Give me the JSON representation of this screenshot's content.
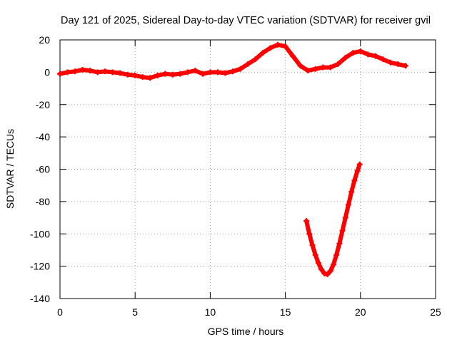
{
  "chart_data": {
    "type": "scatter",
    "title": "Day 121 of 2025, Sidereal Day-to-day VTEC variation (SDTVAR) for receiver gvil",
    "xlabel": "GPS time / hours",
    "ylabel": "SDTVAR / TECUs",
    "xlim": [
      0,
      25
    ],
    "ylim": [
      -140,
      20
    ],
    "xticks": [
      0,
      5,
      10,
      15,
      20,
      25
    ],
    "yticks": [
      20,
      0,
      -20,
      -40,
      -60,
      -80,
      -100,
      -120,
      -140
    ],
    "grid": true,
    "marker": "+",
    "series_color": "#ff0000",
    "series": [
      {
        "x": [
          0.0,
          0.5,
          1.0,
          1.5,
          2.0,
          2.5,
          3.0,
          3.5,
          4.0,
          4.5,
          5.0,
          5.5,
          6.0,
          6.5,
          7.0,
          7.5,
          8.0,
          8.5,
          9.0,
          9.5,
          10.0,
          10.5,
          11.0,
          11.5,
          12.0,
          12.5,
          13.0,
          13.5,
          14.0,
          14.5,
          15.0,
          15.5,
          16.0,
          16.5,
          17.0,
          17.5,
          18.0,
          18.5,
          19.0,
          19.5,
          20.0,
          20.5,
          21.0,
          21.5,
          22.0,
          22.5,
          23.0
        ],
        "y": [
          -1,
          0,
          0.5,
          1.5,
          1,
          0,
          0.5,
          0,
          -0.5,
          -1.5,
          -2,
          -3,
          -3.5,
          -2,
          -1,
          -1.5,
          -1,
          0,
          1,
          -1,
          0,
          0,
          -0.5,
          0.5,
          2,
          5,
          8,
          12,
          15,
          17,
          16,
          10,
          4,
          1,
          2,
          3,
          3,
          5,
          9,
          12,
          13,
          11,
          10,
          8,
          6,
          5,
          4
        ]
      },
      {
        "x": [
          16.4,
          16.6,
          16.8,
          17.0,
          17.2,
          17.4,
          17.6,
          17.8,
          18.0,
          18.2,
          18.4,
          18.6,
          18.8,
          19.0,
          19.2,
          19.4,
          19.6,
          19.8,
          19.95
        ],
        "y": [
          -92,
          -100,
          -107,
          -113,
          -118,
          -122,
          -124.5,
          -125,
          -123,
          -119,
          -113,
          -106,
          -98,
          -90,
          -82,
          -74,
          -67,
          -61,
          -57
        ]
      }
    ]
  }
}
